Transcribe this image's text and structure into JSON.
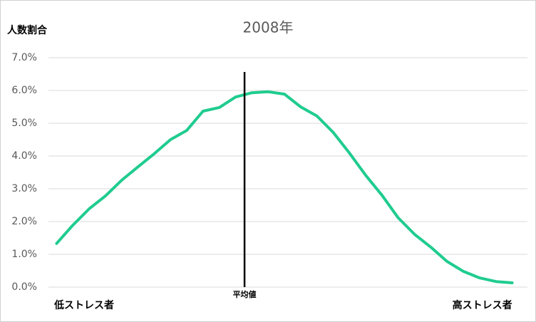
{
  "chart_data": {
    "type": "line",
    "title": "2008年",
    "y_label": "人数割合",
    "categories": [
      "低ストレス者",
      null,
      null,
      null,
      null,
      null,
      null,
      null,
      null,
      null,
      null,
      null,
      null,
      null,
      null,
      null,
      null,
      null,
      null,
      null,
      null,
      null,
      null,
      null,
      null,
      null,
      null,
      null,
      "高ストレス者"
    ],
    "values": [
      1.33,
      1.89,
      2.39,
      2.78,
      3.26,
      3.67,
      4.07,
      4.5,
      4.78,
      5.37,
      5.48,
      5.8,
      5.93,
      5.96,
      5.89,
      5.5,
      5.22,
      4.72,
      4.09,
      3.41,
      2.8,
      2.11,
      1.61,
      1.22,
      0.78,
      0.48,
      0.28,
      0.17,
      0.13
    ],
    "color": "#1fcc8f",
    "mean_marker": {
      "label": "平均値",
      "x": 11.55
    },
    "ylim": [
      0,
      7
    ],
    "yticks": [
      {
        "value": 0,
        "label": "0.0%"
      },
      {
        "value": 1,
        "label": "1.0%"
      },
      {
        "value": 2,
        "label": "2.0%"
      },
      {
        "value": 3,
        "label": "3.0%"
      },
      {
        "value": 4,
        "label": "4.0%"
      },
      {
        "value": 5,
        "label": "5.0%"
      },
      {
        "value": 6,
        "label": "6.0%"
      },
      {
        "value": 7,
        "label": "7.0%"
      }
    ],
    "grid": true
  }
}
